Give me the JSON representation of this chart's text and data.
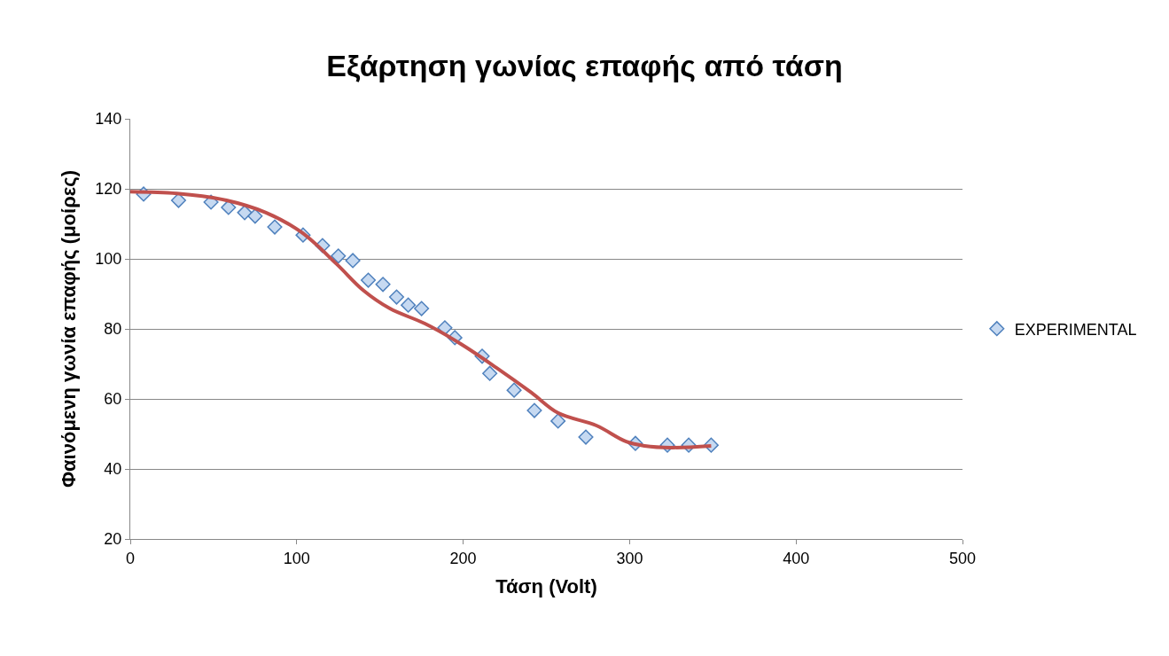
{
  "chart_data": {
    "type": "scatter",
    "title": "Εξάρτηση γωνίας επαφής από τάση",
    "xlabel": "Τάση (Volt)",
    "ylabel": "Φαινόμενη γωνία επαφής (μοίρες)",
    "xlim": [
      0,
      500
    ],
    "xticks": [
      0,
      100,
      200,
      300,
      400,
      500
    ],
    "ylim": [
      20,
      140
    ],
    "yticks": [
      20,
      40,
      60,
      80,
      100,
      120,
      140
    ],
    "grid": "y",
    "legend": "right",
    "series": [
      {
        "name": "EXPERIMENTAL",
        "marker": "diamond",
        "color": "#4f81bd",
        "x": [
          8,
          29,
          48.5,
          59,
          68.7,
          75,
          86.8,
          103.8,
          115.5,
          125,
          133.7,
          143,
          151.8,
          160,
          167,
          175,
          189,
          195,
          211.4,
          216,
          230.6,
          242.8,
          257,
          273.7,
          303.5,
          322.7,
          335.5,
          349
        ],
        "values": [
          118.5,
          116.7,
          116.2,
          114.7,
          113.2,
          112.2,
          109.1,
          106.8,
          103.8,
          100.8,
          99.5,
          93.9,
          92.7,
          89.1,
          86.8,
          85.8,
          80.3,
          77.5,
          72.2,
          67.3,
          62.5,
          56.7,
          53.7,
          49.1,
          47.3,
          46.8,
          46.8,
          46.8
        ]
      },
      {
        "type": "line",
        "marker": "none",
        "line_style": "solid",
        "color": "#c0504d",
        "x": [
          0,
          28,
          55,
          81.5,
          102.8,
          124,
          140,
          156,
          177,
          198.6,
          220,
          241,
          257,
          280,
          298,
          309,
          325,
          349
        ],
        "values": [
          119.2,
          118.7,
          117,
          113.2,
          107.6,
          98.5,
          91,
          85.8,
          81.5,
          75.7,
          68.9,
          61.8,
          56,
          52.4,
          47.8,
          46.6,
          46.1,
          46.6
        ]
      }
    ]
  }
}
